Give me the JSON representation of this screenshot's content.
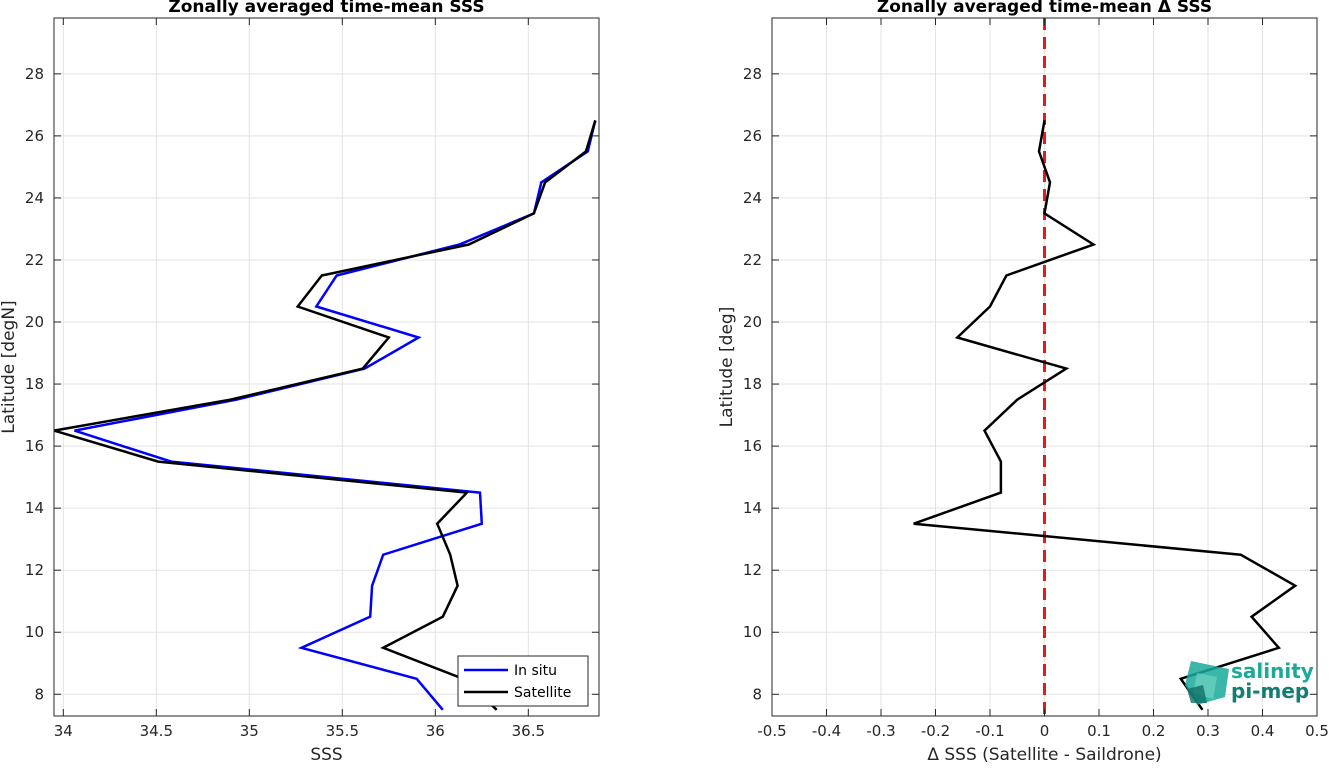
{
  "chart_data": [
    {
      "type": "line",
      "title": "Zonally averaged time-mean SSS",
      "xlabel": "SSS",
      "ylabel": "Latitude [degN]",
      "xlim": [
        33.95,
        36.88
      ],
      "ylim": [
        7.3,
        29.8
      ],
      "xticks": [
        "34",
        "34.5",
        "35",
        "35.5",
        "36",
        "36.5"
      ],
      "xtick_values": [
        34,
        34.5,
        35,
        35.5,
        36,
        36.5
      ],
      "yticks": [
        "8",
        "10",
        "12",
        "14",
        "16",
        "18",
        "20",
        "22",
        "24",
        "26",
        "28"
      ],
      "ytick_values": [
        8,
        10,
        12,
        14,
        16,
        18,
        20,
        22,
        24,
        26,
        28
      ],
      "grid": true,
      "legend_position": "bottom-right",
      "series": [
        {
          "name": "In situ",
          "color": "#0000ff",
          "points": [
            [
              36.04,
              7.5
            ],
            [
              35.9,
              8.5
            ],
            [
              35.28,
              9.5
            ],
            [
              35.65,
              10.5
            ],
            [
              35.66,
              11.5
            ],
            [
              35.72,
              12.5
            ],
            [
              36.25,
              13.5
            ],
            [
              36.24,
              14.5
            ],
            [
              34.58,
              15.5
            ],
            [
              34.06,
              16.5
            ],
            [
              34.93,
              17.5
            ],
            [
              35.62,
              18.5
            ],
            [
              35.91,
              19.5
            ],
            [
              35.36,
              20.5
            ],
            [
              35.47,
              21.5
            ],
            [
              36.13,
              22.5
            ],
            [
              36.53,
              23.5
            ],
            [
              36.57,
              24.5
            ],
            [
              36.82,
              25.5
            ],
            [
              36.86,
              26.5
            ]
          ]
        },
        {
          "name": "Satellite",
          "color": "#000000",
          "points": [
            [
              36.33,
              7.5
            ],
            [
              36.15,
              8.5
            ],
            [
              35.72,
              9.5
            ],
            [
              36.04,
              10.5
            ],
            [
              36.12,
              11.5
            ],
            [
              36.08,
              12.5
            ],
            [
              36.01,
              13.5
            ],
            [
              36.17,
              14.5
            ],
            [
              34.51,
              15.5
            ],
            [
              33.95,
              16.5
            ],
            [
              34.9,
              17.5
            ],
            [
              35.61,
              18.5
            ],
            [
              35.75,
              19.5
            ],
            [
              35.26,
              20.5
            ],
            [
              35.39,
              21.5
            ],
            [
              36.18,
              22.5
            ],
            [
              36.53,
              23.5
            ],
            [
              36.59,
              24.5
            ],
            [
              36.81,
              25.5
            ],
            [
              36.86,
              26.5
            ]
          ]
        }
      ]
    },
    {
      "type": "line",
      "title": "Zonally averaged time-mean Δ SSS",
      "xlabel": "Δ SSS (Satellite - Saildrone)",
      "ylabel": "Latitude [deg]",
      "xlim": [
        -0.5,
        0.5
      ],
      "ylim": [
        7.3,
        29.8
      ],
      "xticks": [
        "-0.5",
        "-0.4",
        "-0.3",
        "-0.2",
        "-0.1",
        "0",
        "0.1",
        "0.2",
        "0.3",
        "0.4",
        "0.5"
      ],
      "xtick_values": [
        -0.5,
        -0.4,
        -0.3,
        -0.2,
        -0.1,
        0,
        0.1,
        0.2,
        0.3,
        0.4,
        0.5
      ],
      "yticks": [
        "8",
        "10",
        "12",
        "14",
        "16",
        "18",
        "20",
        "22",
        "24",
        "26",
        "28"
      ],
      "ytick_values": [
        8,
        10,
        12,
        14,
        16,
        18,
        20,
        22,
        24,
        26,
        28
      ],
      "grid": true,
      "reference_line": {
        "x": 0,
        "color": "#e41a1c",
        "style": "dashed"
      },
      "series": [
        {
          "color": "#000000",
          "points": [
            [
              0.29,
              7.5
            ],
            [
              0.25,
              8.5
            ],
            [
              0.43,
              9.5
            ],
            [
              0.38,
              10.5
            ],
            [
              0.46,
              11.5
            ],
            [
              0.36,
              12.5
            ],
            [
              -0.24,
              13.5
            ],
            [
              -0.08,
              14.5
            ],
            [
              -0.08,
              15.5
            ],
            [
              -0.11,
              16.5
            ],
            [
              -0.05,
              17.5
            ],
            [
              0.04,
              18.5
            ],
            [
              -0.16,
              19.5
            ],
            [
              -0.1,
              20.5
            ],
            [
              -0.07,
              21.5
            ],
            [
              0.09,
              22.5
            ],
            [
              0.0,
              23.5
            ],
            [
              0.01,
              24.5
            ],
            [
              -0.01,
              25.5
            ],
            [
              0.0,
              26.5
            ]
          ]
        }
      ]
    }
  ],
  "logo": {
    "line1": "salinity",
    "line2": "pi-mep",
    "color1": "#1aa99a",
    "color2": "#137d72"
  }
}
